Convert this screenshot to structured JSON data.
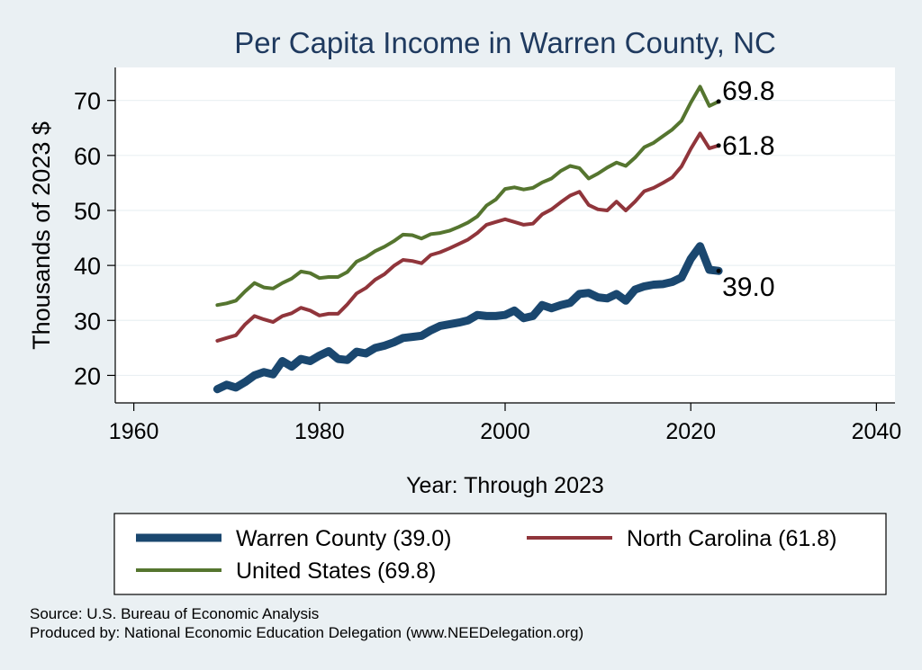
{
  "chart_data": {
    "type": "line",
    "title": "Per Capita Income in Warren County, NC",
    "xlabel": "Year: Through 2023",
    "ylabel": "Thousands of 2023 $",
    "xlim": [
      1958,
      2042
    ],
    "ylim": [
      15,
      76
    ],
    "xticks": [
      1960,
      1980,
      2000,
      2020,
      2040
    ],
    "yticks": [
      20,
      30,
      40,
      50,
      60,
      70
    ],
    "grid": true,
    "legend_position": "bottom",
    "colors": {
      "background": "#eaf0f3",
      "plot": "#ffffff",
      "title": "#1f3a5f"
    },
    "x": [
      1969,
      1970,
      1971,
      1972,
      1973,
      1974,
      1975,
      1976,
      1977,
      1978,
      1979,
      1980,
      1981,
      1982,
      1983,
      1984,
      1985,
      1986,
      1987,
      1988,
      1989,
      1990,
      1991,
      1992,
      1993,
      1994,
      1995,
      1996,
      1997,
      1998,
      1999,
      2000,
      2001,
      2002,
      2003,
      2004,
      2005,
      2006,
      2007,
      2008,
      2009,
      2010,
      2011,
      2012,
      2013,
      2014,
      2015,
      2016,
      2017,
      2018,
      2019,
      2020,
      2021,
      2022,
      2023
    ],
    "series": [
      {
        "name": "Warren County",
        "legend": "Warren County (39.0)",
        "end_label": "39.0",
        "color": "#1a476f",
        "stroke": 9,
        "values": [
          17.5,
          18.3,
          17.8,
          18.8,
          20.0,
          20.6,
          20.2,
          22.6,
          21.6,
          23.0,
          22.6,
          23.6,
          24.4,
          23.0,
          22.8,
          24.3,
          24.0,
          25.0,
          25.4,
          26.0,
          26.8,
          27.0,
          27.2,
          28.2,
          29.0,
          29.3,
          29.6,
          30.0,
          31.0,
          30.8,
          30.8,
          31.0,
          31.8,
          30.4,
          30.8,
          32.8,
          32.2,
          32.8,
          33.2,
          34.8,
          35.0,
          34.2,
          34.0,
          34.8,
          33.6,
          35.6,
          36.2,
          36.5,
          36.6,
          37.0,
          37.8,
          41.2,
          43.5,
          39.2,
          39.0
        ]
      },
      {
        "name": "North Carolina",
        "legend": "North Carolina (61.8)",
        "end_label": "61.8",
        "color": "#90353b",
        "stroke": 4,
        "values": [
          26.3,
          26.8,
          27.3,
          29.3,
          30.8,
          30.2,
          29.7,
          30.8,
          31.3,
          32.3,
          31.8,
          30.9,
          31.2,
          31.2,
          32.9,
          34.9,
          35.9,
          37.4,
          38.4,
          39.9,
          41.0,
          40.8,
          40.4,
          41.9,
          42.4,
          43.1,
          43.9,
          44.7,
          45.9,
          47.4,
          47.9,
          48.4,
          47.9,
          47.4,
          47.6,
          49.3,
          50.2,
          51.5,
          52.7,
          53.4,
          51.0,
          50.2,
          50.0,
          51.6,
          50.0,
          51.6,
          53.5,
          54.1,
          55.0,
          56.0,
          58.0,
          61.2,
          64.0,
          61.3,
          61.8
        ]
      },
      {
        "name": "United States",
        "legend": "United States (69.8)",
        "end_label": "69.8",
        "color": "#55752f",
        "stroke": 4,
        "values": [
          32.8,
          33.1,
          33.6,
          35.3,
          36.8,
          36.0,
          35.8,
          36.8,
          37.6,
          38.9,
          38.6,
          37.7,
          37.9,
          37.9,
          38.8,
          40.7,
          41.5,
          42.6,
          43.4,
          44.4,
          45.6,
          45.5,
          44.9,
          45.7,
          45.9,
          46.3,
          47.0,
          47.8,
          48.9,
          50.9,
          52.0,
          53.9,
          54.2,
          53.8,
          54.1,
          55.1,
          55.8,
          57.2,
          58.1,
          57.7,
          55.8,
          56.7,
          57.8,
          58.7,
          58.1,
          59.6,
          61.5,
          62.3,
          63.5,
          64.7,
          66.3,
          69.6,
          72.5,
          69.0,
          69.8
        ]
      }
    ]
  },
  "source": "Source: U.S. Bureau of Economic Analysis",
  "produced_by": "Produced by: National Economic Education Delegation (www.NEEDelegation.org)"
}
